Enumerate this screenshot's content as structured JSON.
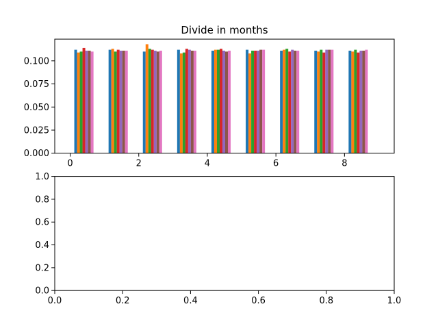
{
  "chart_data": [
    {
      "type": "bar",
      "title": "Divide in months",
      "xlabel": "",
      "ylabel": "",
      "xlim": [
        -0.45,
        9.45
      ],
      "ylim": [
        0,
        0.1235
      ],
      "xticks": [
        0,
        2,
        4,
        6,
        8
      ],
      "xtick_labels": [
        "0",
        "2",
        "4",
        "6",
        "8"
      ],
      "yticks": [
        0.0,
        0.025,
        0.05,
        0.075,
        0.1
      ],
      "ytick_labels": [
        "0.000",
        "0.025",
        "0.050",
        "0.075",
        "0.100"
      ],
      "grid": false,
      "group_positions": [
        0,
        1,
        2,
        3,
        4,
        5,
        6,
        7,
        8
      ],
      "bar_width": 0.08,
      "first_bar_offset": 0.16,
      "series": [
        {
          "color": "#1f77b4",
          "values": [
            0.112,
            0.112,
            0.11,
            0.112,
            0.111,
            0.112,
            0.111,
            0.111,
            0.111
          ]
        },
        {
          "color": "#ff7f0e",
          "values": [
            0.109,
            0.113,
            0.118,
            0.108,
            0.112,
            0.108,
            0.112,
            0.11,
            0.11
          ]
        },
        {
          "color": "#2ca02c",
          "values": [
            0.11,
            0.11,
            0.113,
            0.109,
            0.112,
            0.111,
            0.113,
            0.112,
            0.112
          ]
        },
        {
          "color": "#d62728",
          "values": [
            0.114,
            0.112,
            0.112,
            0.113,
            0.113,
            0.111,
            0.11,
            0.109,
            0.109
          ]
        },
        {
          "color": "#9467bd",
          "values": [
            0.111,
            0.111,
            0.111,
            0.112,
            0.111,
            0.111,
            0.112,
            0.112,
            0.111
          ]
        },
        {
          "color": "#8c564b",
          "values": [
            0.111,
            0.111,
            0.11,
            0.111,
            0.11,
            0.112,
            0.111,
            0.112,
            0.111
          ]
        },
        {
          "color": "#e377c2",
          "values": [
            0.11,
            0.111,
            0.111,
            0.111,
            0.111,
            0.112,
            0.111,
            0.112,
            0.112
          ]
        }
      ]
    },
    {
      "type": "line",
      "title": "",
      "xlabel": "",
      "ylabel": "",
      "xlim": [
        0,
        1
      ],
      "ylim": [
        0,
        1
      ],
      "xticks": [
        0,
        0.2,
        0.4,
        0.6,
        0.8,
        1.0
      ],
      "xtick_labels": [
        "0.0",
        "0.2",
        "0.4",
        "0.6",
        "0.8",
        "1.0"
      ],
      "yticks": [
        0,
        0.2,
        0.4,
        0.6,
        0.8,
        1.0
      ],
      "ytick_labels": [
        "0.0",
        "0.2",
        "0.4",
        "0.6",
        "0.8",
        "1.0"
      ],
      "grid": false,
      "series": []
    }
  ]
}
